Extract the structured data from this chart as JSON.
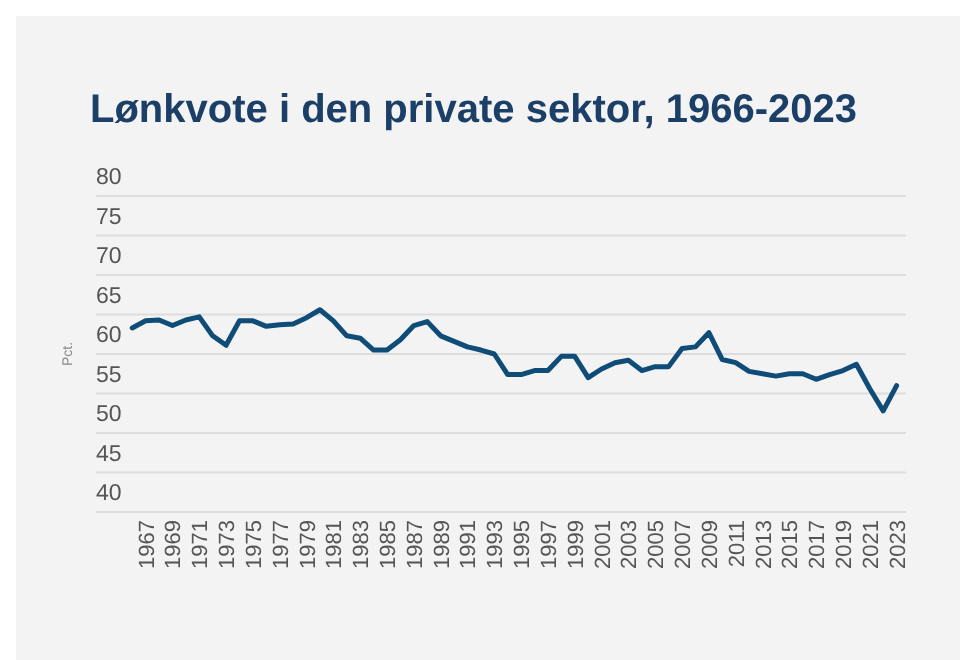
{
  "chart_data": {
    "type": "line",
    "title": "Lønkvote i den private sektor, 1966-2023",
    "ylabel": "Pct.",
    "x": [
      1966,
      1967,
      1968,
      1969,
      1970,
      1971,
      1972,
      1973,
      1974,
      1975,
      1976,
      1977,
      1978,
      1979,
      1980,
      1981,
      1982,
      1983,
      1984,
      1985,
      1986,
      1987,
      1988,
      1989,
      1990,
      1991,
      1992,
      1993,
      1994,
      1995,
      1996,
      1997,
      1998,
      1999,
      2000,
      2001,
      2002,
      2003,
      2004,
      2005,
      2006,
      2007,
      2008,
      2009,
      2010,
      2011,
      2012,
      2013,
      2014,
      2015,
      2016,
      2017,
      2018,
      2019,
      2020,
      2021,
      2022,
      2023
    ],
    "series": [
      {
        "color": "#0f4c78",
        "values": [
          63.3,
          64.2,
          64.3,
          63.6,
          64.3,
          64.7,
          62.3,
          61.1,
          64.2,
          64.2,
          63.5,
          63.7,
          63.8,
          64.6,
          65.6,
          64.2,
          62.3,
          62.0,
          60.5,
          60.5,
          61.8,
          63.6,
          64.1,
          62.3,
          61.6,
          60.9,
          60.5,
          60.0,
          57.4,
          57.4,
          57.9,
          57.9,
          59.7,
          59.7,
          57.0,
          58.1,
          58.9,
          59.2,
          57.9,
          58.4,
          58.4,
          60.7,
          60.9,
          62.7,
          59.3,
          58.9,
          57.8,
          57.5,
          57.2,
          57.5,
          57.5,
          56.8,
          57.4,
          57.9,
          58.7,
          55.6,
          52.8,
          56.0
        ]
      }
    ],
    "xlim": [
      1963.3,
      2023.7
    ],
    "xticks": [
      1967,
      1969,
      1971,
      1973,
      1975,
      1977,
      1979,
      1981,
      1983,
      1985,
      1987,
      1989,
      1991,
      1993,
      1995,
      1997,
      1999,
      2001,
      2003,
      2005,
      2007,
      2009,
      2011,
      2013,
      2015,
      2017,
      2019,
      2021,
      2023
    ],
    "ylim": [
      40,
      80
    ],
    "yticks": [
      40,
      45,
      50,
      55,
      60,
      65,
      70,
      75,
      80
    ],
    "grid": "y",
    "line_style": "solid",
    "marker": "none"
  }
}
